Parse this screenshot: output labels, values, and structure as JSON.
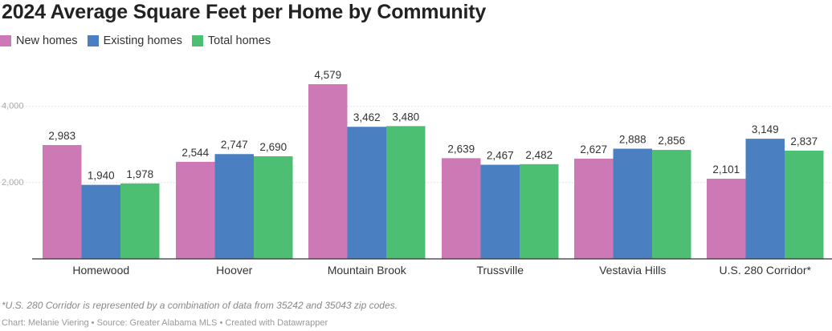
{
  "chart_data": {
    "type": "bar",
    "title": "2024 Average Square Feet per Home by Community",
    "categories": [
      "Homewood",
      "Hoover",
      "Mountain Brook",
      "Trussville",
      "Vestavia Hills",
      "U.S. 280 Corridor*"
    ],
    "series": [
      {
        "name": "New homes",
        "color": "#cc79b6",
        "values": [
          2983,
          2544,
          4579,
          2639,
          2627,
          2101
        ],
        "labels": [
          "2,983",
          "2,544",
          "4,579",
          "2,639",
          "2,627",
          "2,101"
        ]
      },
      {
        "name": "Existing homes",
        "color": "#4a7fc1",
        "values": [
          1940,
          2747,
          3462,
          2467,
          2888,
          3149
        ],
        "labels": [
          "1,940",
          "2,747",
          "3,462",
          "2,467",
          "2,888",
          "3,149"
        ]
      },
      {
        "name": "Total homes",
        "color": "#4dbf73",
        "values": [
          1978,
          2690,
          3480,
          2482,
          2856,
          2837
        ],
        "labels": [
          "1,978",
          "2,690",
          "3,480",
          "2,482",
          "2,856",
          "2,837"
        ]
      }
    ],
    "y_ticks": [
      2000,
      4000
    ],
    "y_tick_labels": [
      "2,000",
      "4,000"
    ],
    "ylim": [
      0,
      5000
    ],
    "legend_position": "top-left",
    "grid": true
  },
  "footnote": "*U.S. 280 Corridor is represented by a combination of data from 35242 and 35043 zip codes.",
  "credit": "Chart: Melanie Viering • Source: Greater Alabama MLS • Created with Datawrapper"
}
